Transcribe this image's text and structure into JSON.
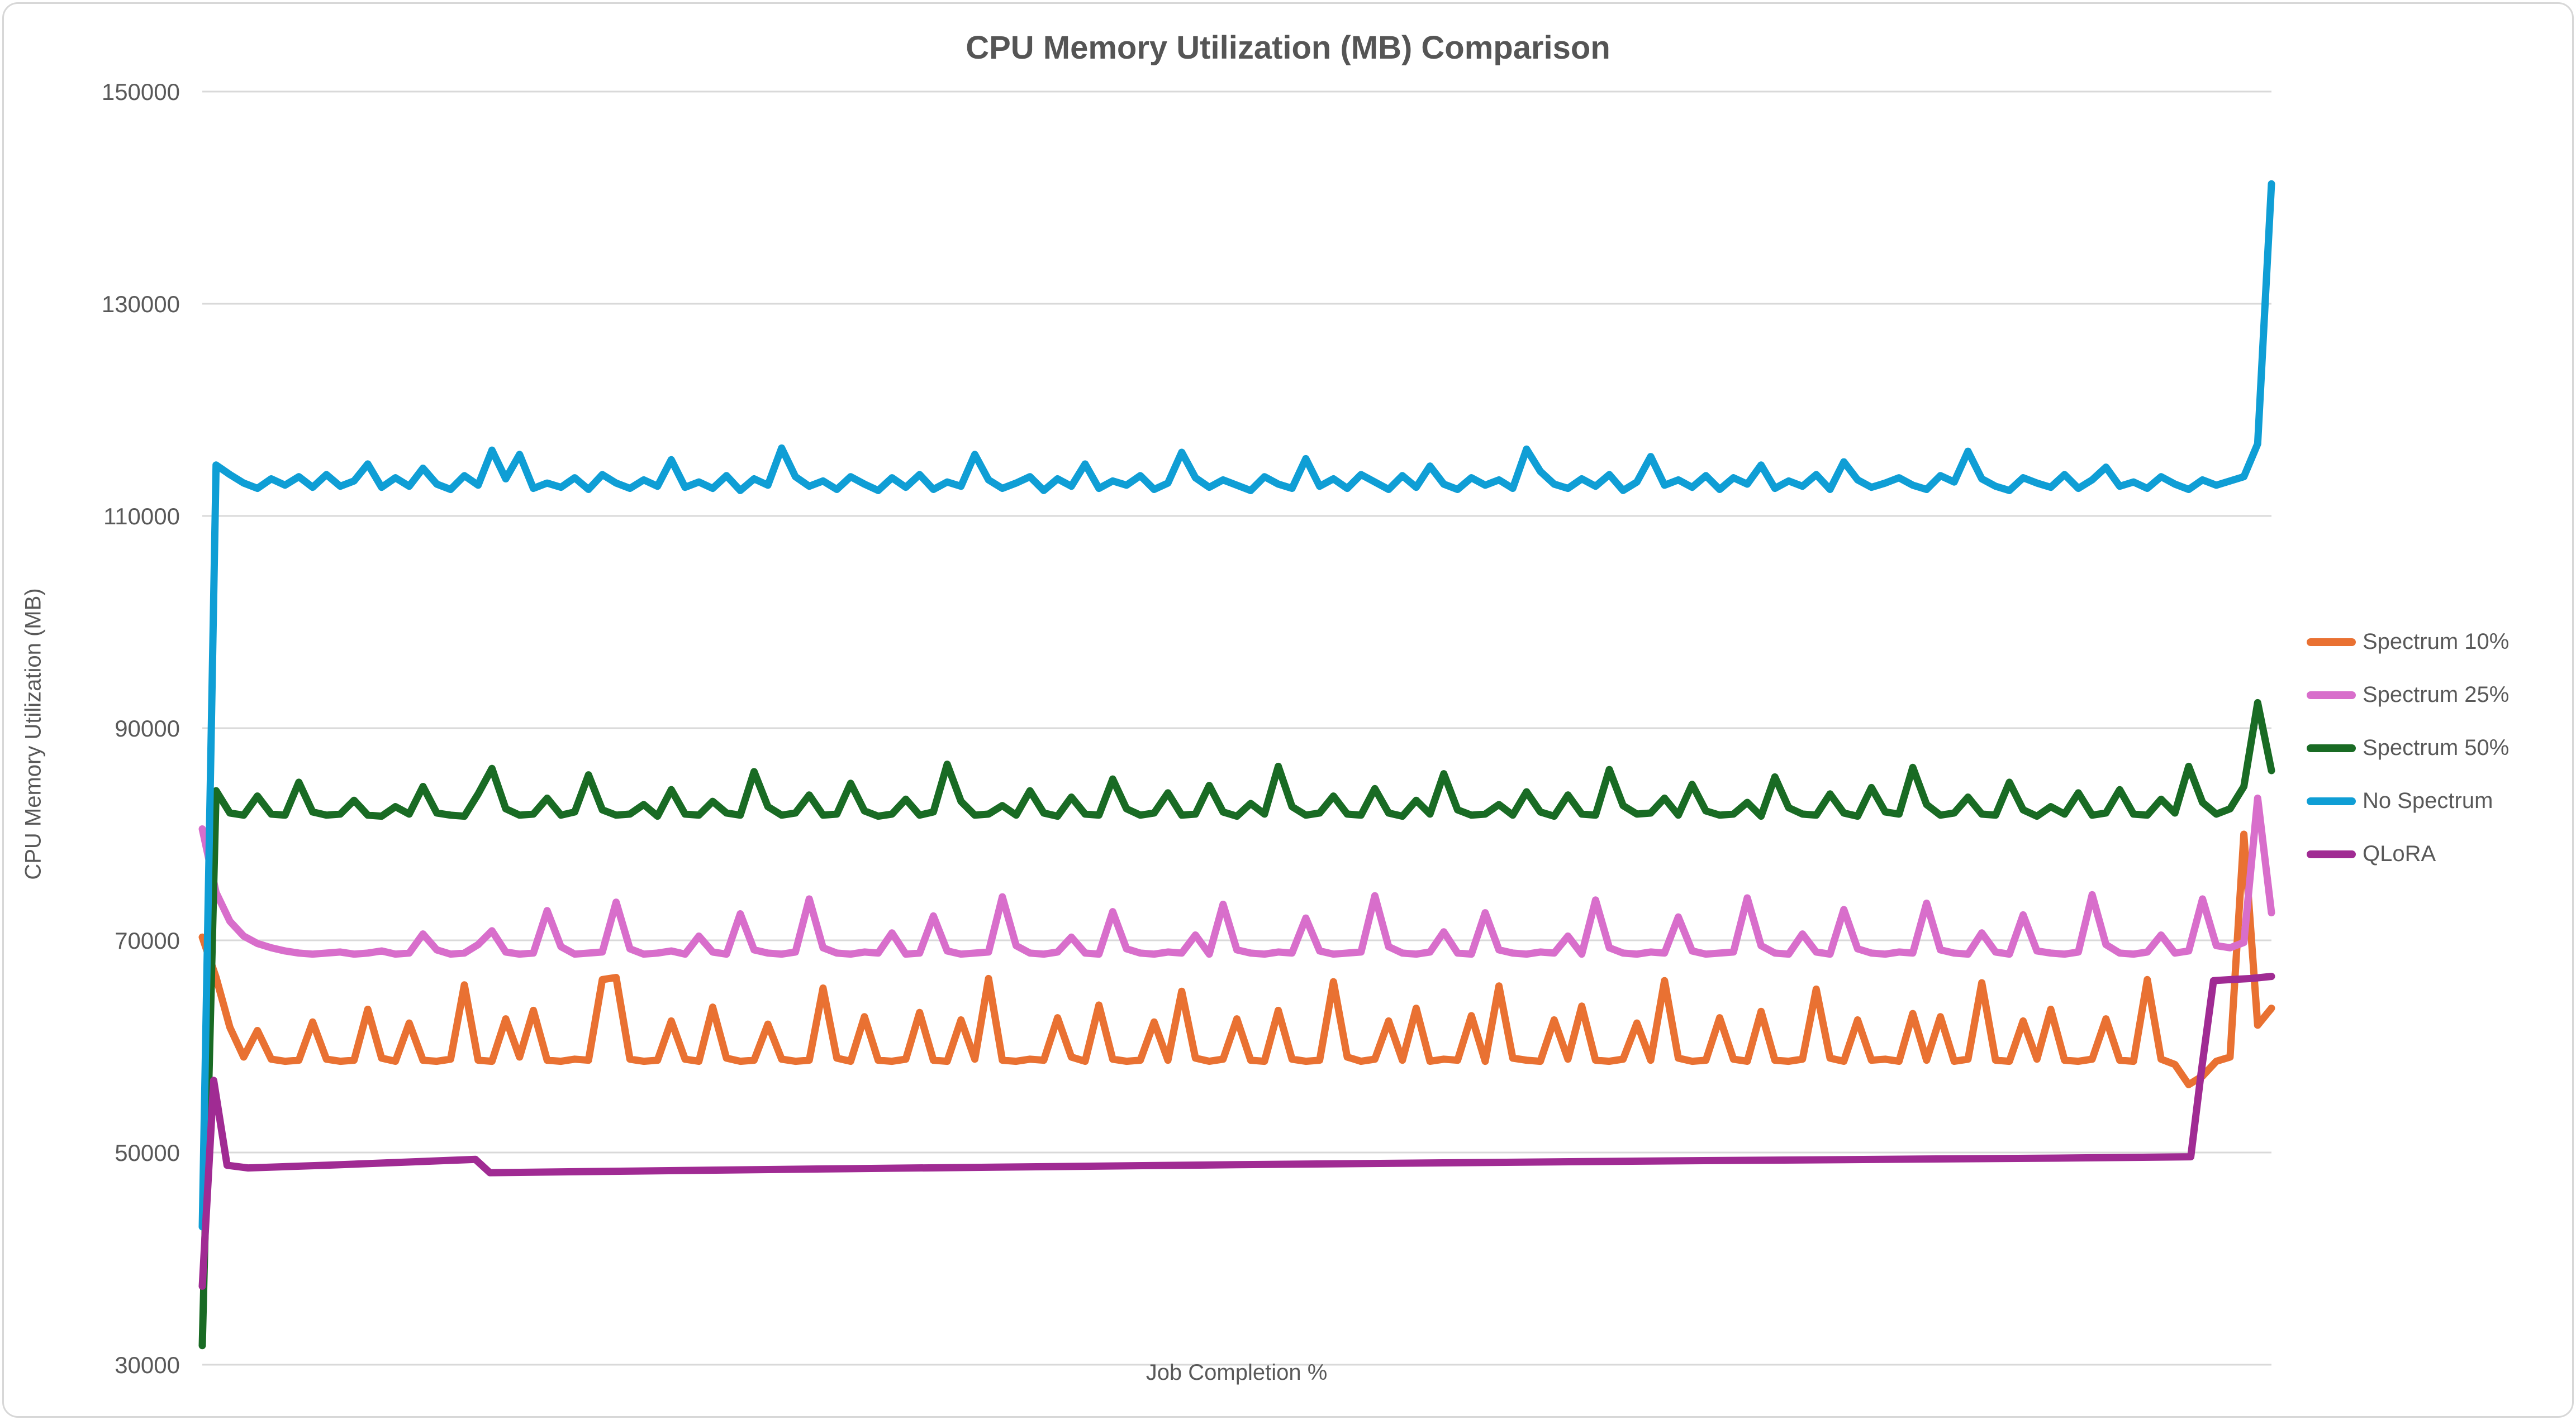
{
  "chart_data": {
    "type": "line",
    "title": "CPU Memory Utilization (MB) Comparison",
    "xlabel": "Job Completion %",
    "ylabel": "CPU Memory Utilization (MB)",
    "ylim": [
      30000,
      150000
    ],
    "y_ticks": [
      150000,
      130000,
      110000,
      90000,
      70000,
      50000,
      30000
    ],
    "x_axis_unit": "percent_of_job_0_to_100",
    "grid": true,
    "legend_position": "right",
    "grid_color": "#d9d9d9",
    "text_color": "#595959",
    "series": [
      {
        "name": "Spectrum 10%",
        "color": "#e97132",
        "values": [
          70300,
          66500,
          61800,
          59000,
          61500,
          58800,
          58600,
          58700,
          62300,
          58800,
          58600,
          58700,
          63500,
          58900,
          58600,
          62200,
          58700,
          58600,
          58800,
          65800,
          58700,
          58600,
          62600,
          59000,
          63400,
          58700,
          58600,
          58800,
          58700,
          66300,
          66500,
          58800,
          58600,
          58700,
          62400,
          58800,
          58600,
          63700,
          58900,
          58600,
          58700,
          62100,
          58800,
          58600,
          58700,
          65500,
          58900,
          58600,
          62800,
          58700,
          58600,
          58800,
          63200,
          58700,
          58600,
          62500,
          58800,
          66400,
          58700,
          58600,
          58800,
          58700,
          62700,
          59000,
          58600,
          63900,
          58800,
          58600,
          58700,
          62300,
          58700,
          65200,
          58900,
          58600,
          58800,
          62600,
          58700,
          58600,
          63400,
          58800,
          58600,
          58700,
          66100,
          59000,
          58600,
          58800,
          62400,
          58700,
          63600,
          58600,
          58800,
          58700,
          62900,
          58600,
          65700,
          58900,
          58700,
          58600,
          62500,
          58800,
          63800,
          58700,
          58600,
          58800,
          62200,
          58700,
          66200,
          58900,
          58600,
          58700,
          62700,
          58800,
          58600,
          63300,
          58700,
          58600,
          58800,
          65400,
          58900,
          58600,
          62500,
          58700,
          58800,
          58600,
          63100,
          58700,
          62800,
          58600,
          58800,
          66000,
          58700,
          58600,
          62400,
          58800,
          63500,
          58700,
          58600,
          58800,
          62600,
          58700,
          58600,
          66300,
          58800,
          58300,
          56400,
          57200,
          58600,
          59000,
          80000,
          62000,
          63600
        ]
      },
      {
        "name": "Spectrum 25%",
        "color": "#d86ecb",
        "values": [
          80500,
          74500,
          71800,
          70400,
          69700,
          69300,
          69000,
          68800,
          68700,
          68800,
          68900,
          68700,
          68800,
          69000,
          68700,
          68800,
          70600,
          69100,
          68700,
          68800,
          69600,
          70900,
          68900,
          68700,
          68800,
          72800,
          69400,
          68700,
          68800,
          68900,
          73600,
          69200,
          68700,
          68800,
          69000,
          68700,
          70400,
          68900,
          68700,
          72500,
          69100,
          68800,
          68700,
          68900,
          73900,
          69300,
          68800,
          68700,
          68900,
          68800,
          70700,
          68700,
          68800,
          72300,
          69000,
          68700,
          68800,
          68900,
          74100,
          69500,
          68800,
          68700,
          68900,
          70300,
          68800,
          68700,
          72700,
          69200,
          68800,
          68700,
          68900,
          68800,
          70500,
          68700,
          73400,
          69100,
          68800,
          68700,
          68900,
          68800,
          72100,
          69000,
          68700,
          68800,
          68900,
          74200,
          69400,
          68800,
          68700,
          68900,
          70800,
          68800,
          68700,
          72600,
          69100,
          68800,
          68700,
          68900,
          68800,
          70400,
          68700,
          73800,
          69300,
          68800,
          68700,
          68900,
          68800,
          72200,
          69000,
          68700,
          68800,
          68900,
          74000,
          69500,
          68800,
          68700,
          70600,
          68900,
          68700,
          72900,
          69200,
          68800,
          68700,
          68900,
          68800,
          73500,
          69100,
          68800,
          68700,
          70700,
          68900,
          68700,
          72400,
          69000,
          68800,
          68700,
          68900,
          74300,
          69600,
          68800,
          68700,
          68900,
          70500,
          68800,
          69000,
          73900,
          69500,
          69300,
          69800,
          83400,
          72600
        ]
      },
      {
        "name": "Spectrum 50%",
        "color": "#196b24",
        "values": [
          31800,
          84100,
          82000,
          81800,
          83600,
          81900,
          81800,
          84900,
          82100,
          81800,
          81900,
          83200,
          81800,
          81700,
          82600,
          81900,
          84500,
          82000,
          81800,
          81700,
          83800,
          86200,
          82400,
          81800,
          81900,
          83400,
          81800,
          82100,
          85600,
          82300,
          81800,
          81900,
          82800,
          81700,
          84200,
          81900,
          81800,
          83100,
          82000,
          81800,
          85900,
          82600,
          81800,
          82000,
          83700,
          81800,
          81900,
          84800,
          82200,
          81700,
          81900,
          83300,
          81800,
          82100,
          86600,
          83100,
          81800,
          81900,
          82700,
          81800,
          84100,
          82000,
          81700,
          83500,
          81900,
          81800,
          85200,
          82400,
          81800,
          82000,
          83900,
          81800,
          81900,
          84600,
          82100,
          81700,
          82900,
          81900,
          86400,
          82600,
          81800,
          82000,
          83600,
          81900,
          81800,
          84300,
          82000,
          81700,
          83200,
          81900,
          85700,
          82300,
          81800,
          81900,
          82800,
          81800,
          84000,
          82100,
          81700,
          83700,
          81900,
          81800,
          86100,
          82700,
          81900,
          82000,
          83400,
          81800,
          84700,
          82200,
          81800,
          81900,
          83000,
          81700,
          85400,
          82500,
          81900,
          81800,
          83800,
          82000,
          81700,
          84400,
          82100,
          81900,
          86300,
          82800,
          81800,
          82000,
          83500,
          81900,
          81800,
          84900,
          82300,
          81700,
          82600,
          81900,
          83900,
          81800,
          82000,
          84200,
          81900,
          81800,
          83300,
          82000,
          86400,
          83000,
          81900,
          82400,
          84500,
          92400,
          86000
        ]
      },
      {
        "name": "No Spectrum",
        "color": "#0f9ed5",
        "values": [
          43000,
          114800,
          113900,
          113100,
          112600,
          113500,
          112900,
          113700,
          112700,
          113900,
          112800,
          113300,
          114900,
          112700,
          113600,
          112800,
          114500,
          113000,
          112500,
          113800,
          112900,
          116200,
          113500,
          115800,
          112600,
          113100,
          112700,
          113600,
          112500,
          113900,
          113100,
          112600,
          113400,
          112800,
          115300,
          112700,
          113200,
          112600,
          113800,
          112400,
          113500,
          112900,
          116400,
          113700,
          112800,
          113300,
          112500,
          113700,
          113000,
          112400,
          113600,
          112700,
          113900,
          112500,
          113200,
          112800,
          115800,
          113400,
          112600,
          113100,
          113700,
          112400,
          113500,
          112800,
          114900,
          112600,
          113300,
          112900,
          113800,
          112500,
          113100,
          116000,
          113600,
          112700,
          113400,
          112900,
          112400,
          113700,
          113000,
          112600,
          115400,
          112800,
          113500,
          112600,
          113900,
          113200,
          112500,
          113800,
          112700,
          114700,
          113000,
          112500,
          113600,
          112900,
          113400,
          112600,
          116300,
          114200,
          113000,
          112600,
          113500,
          112800,
          113900,
          112400,
          113200,
          115600,
          112900,
          113400,
          112700,
          113800,
          112500,
          113600,
          113000,
          114800,
          112600,
          113300,
          112800,
          113900,
          112500,
          115100,
          113400,
          112700,
          113100,
          113600,
          112900,
          112500,
          113800,
          113200,
          116100,
          113500,
          112800,
          112400,
          113600,
          113100,
          112700,
          113900,
          112600,
          113400,
          114600,
          112800,
          113200,
          112600,
          113700,
          113000,
          112500,
          113400,
          112900,
          113300,
          113700,
          116800,
          141300
        ]
      },
      {
        "name": "QLoRA",
        "color": "#a02b93",
        "points": [
          [
            0,
            37400
          ],
          [
            0.55,
            56800
          ],
          [
            1.2,
            48800
          ],
          [
            2.2,
            48550
          ],
          [
            6,
            48800
          ],
          [
            13.2,
            49350
          ],
          [
            13.9,
            48100
          ],
          [
            30,
            48450
          ],
          [
            50,
            48850
          ],
          [
            70,
            49200
          ],
          [
            90,
            49480
          ],
          [
            96.1,
            49600
          ],
          [
            96.6,
            57500
          ],
          [
            97.2,
            66200
          ],
          [
            98,
            66300
          ],
          [
            99,
            66400
          ],
          [
            100,
            66600
          ]
        ]
      }
    ]
  }
}
